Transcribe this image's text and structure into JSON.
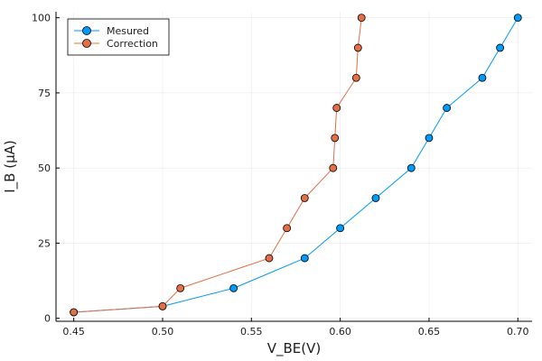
{
  "chart_data": {
    "type": "line",
    "xlabel": "V_BE(V)",
    "ylabel": "I_B (μA)",
    "xlim": [
      0.44,
      0.708
    ],
    "ylim": [
      -1,
      102
    ],
    "x_ticks": [
      0.45,
      0.5,
      0.55,
      0.6,
      0.65,
      0.7
    ],
    "x_tick_labels": [
      "0.45",
      "0.50",
      "0.55",
      "0.60",
      "0.65",
      "0.70"
    ],
    "y_ticks": [
      0,
      25,
      50,
      75,
      100
    ],
    "y_tick_labels": [
      "0",
      "25",
      "50",
      "75",
      "100"
    ],
    "grid": true,
    "legend_position": "top-left",
    "series": [
      {
        "name": "Mesured",
        "color": "#009AFA",
        "marker": "circle",
        "x": [
          0.45,
          0.5,
          0.54,
          0.58,
          0.6,
          0.62,
          0.64,
          0.65,
          0.66,
          0.68,
          0.69,
          0.7
        ],
        "y": [
          2,
          4,
          10,
          20,
          30,
          40,
          50,
          60,
          70,
          80,
          90,
          100
        ]
      },
      {
        "name": "Correction",
        "color": "#E26F46",
        "marker": "circle",
        "x": [
          0.45,
          0.5,
          0.51,
          0.56,
          0.57,
          0.58,
          0.596,
          0.597,
          0.598,
          0.609,
          0.61,
          0.612
        ],
        "y": [
          2,
          4,
          10,
          20,
          30,
          40,
          50,
          60,
          70,
          80,
          90,
          100
        ]
      }
    ]
  }
}
